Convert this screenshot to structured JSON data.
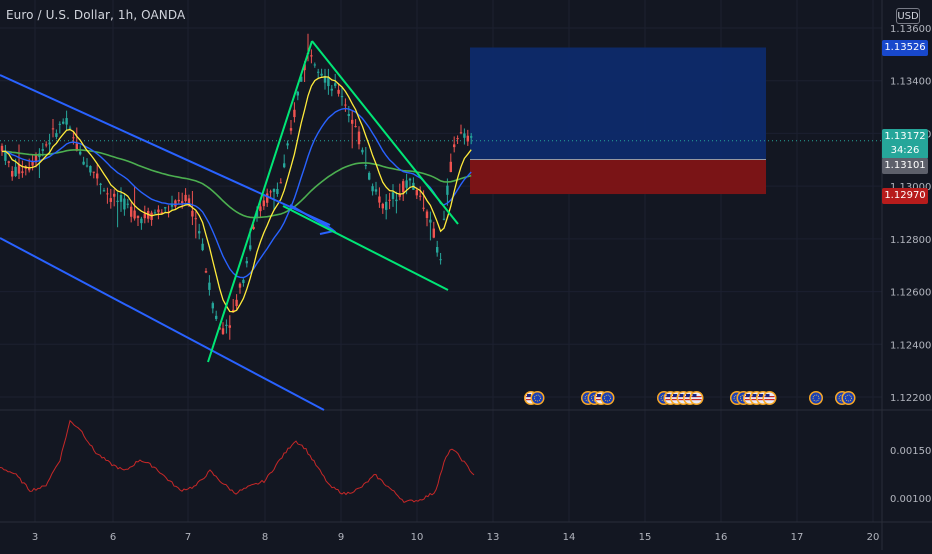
{
  "chart": {
    "symbol_title": "Euro / U.S. Dollar, 1h, OANDA",
    "currency": "USD",
    "colors": {
      "background": "#131722",
      "up_candle": "#26a69a",
      "down_candle": "#ef5350",
      "channel": "#2962ff",
      "wedge": "#00e676",
      "ema_fast": "#ffeb3b",
      "ema_mid": "#2962ff",
      "ema_slow": "#4caf50",
      "oscillator": "#c62828",
      "target_zone": "#0d2a6b",
      "stop_zone": "#7f1416"
    },
    "price_badges": [
      {
        "label": "1.13526",
        "color": "#1848cc",
        "kind": "target"
      },
      {
        "label": "1.13172",
        "sub": "34:26",
        "color": "#26a69a",
        "kind": "last-price"
      },
      {
        "label": "1.13101",
        "color": "#5d606b",
        "kind": "entry"
      },
      {
        "label": "1.12970",
        "color": "#b71c1c",
        "kind": "stop"
      }
    ]
  },
  "chart_data": {
    "type": "candlestick",
    "y_ticks": [
      "1.13600",
      "1.13400",
      "1.13200",
      "1.13000",
      "1.12800",
      "1.12600",
      "1.12400",
      "1.12200"
    ],
    "ylim": [
      1.121,
      1.137
    ],
    "x_ticks": [
      "3",
      "6",
      "7",
      "8",
      "9",
      "10",
      "13",
      "14",
      "15",
      "16",
      "17",
      "20"
    ],
    "oscillator_ticks": [
      "0.00150",
      "0.00100"
    ],
    "oscillator_ylim": [
      0.0008,
      0.002
    ],
    "position": {
      "target": 1.13526,
      "entry": 1.13101,
      "stop": 1.1297,
      "last": 1.13172
    },
    "event_icons": [
      {
        "day": "13",
        "flags": [
          "us",
          "eu"
        ]
      },
      {
        "day": "14",
        "flags": [
          "eu",
          "eu",
          "us",
          "eu"
        ]
      },
      {
        "day": "15",
        "flags": [
          "eu",
          "us",
          "us",
          "us",
          "us",
          "us"
        ]
      },
      {
        "day": "16",
        "flags": [
          "eu",
          "eu",
          "us",
          "us",
          "us",
          "us"
        ]
      },
      {
        "day": "17",
        "flags": [
          "eu"
        ]
      },
      {
        "day": "18",
        "flags": [
          "eu",
          "eu"
        ]
      }
    ]
  }
}
